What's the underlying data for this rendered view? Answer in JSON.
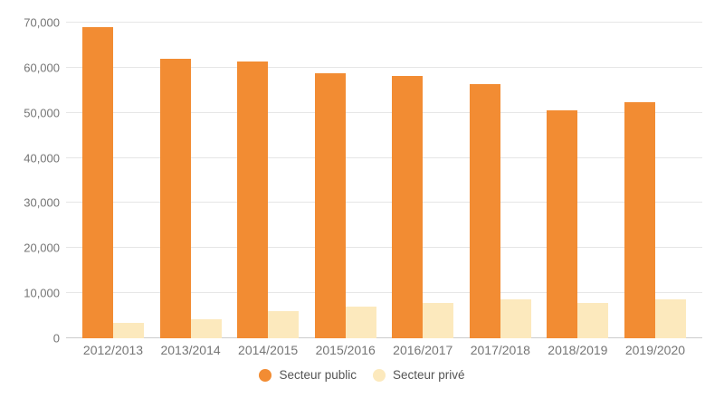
{
  "chart_data": {
    "type": "bar",
    "title": "",
    "xlabel": "",
    "ylabel": "",
    "categories": [
      "2012/2013",
      "2013/2014",
      "2014/2015",
      "2015/2016",
      "2016/2017",
      "2017/2018",
      "2018/2019",
      "2019/2020"
    ],
    "series": [
      {
        "name": "Secteur public",
        "color": "#F28C33",
        "values": [
          69000,
          61900,
          61300,
          58800,
          58100,
          56400,
          50500,
          52300
        ]
      },
      {
        "name": "Secteur privé",
        "color": "#FCE9BD",
        "values": [
          3400,
          4200,
          6000,
          7100,
          7900,
          8600,
          7900,
          8700
        ]
      }
    ],
    "ylim": [
      0,
      70000
    ],
    "ytick_interval": 10000,
    "ytick_labels": [
      "0",
      "10,000",
      "20,000",
      "30,000",
      "40,000",
      "50,000",
      "60,000",
      "70,000"
    ],
    "grid": "horizontal",
    "legend_position": "bottom-center"
  },
  "colors": {
    "background": "#FFFFFF",
    "gridline": "#E6E6E6",
    "axis_line": "#CCCCCC",
    "tick_label": "#757575",
    "legend_label": "#555555",
    "secteur_public": "#F28C33",
    "secteur_prive": "#FCE9BD"
  }
}
